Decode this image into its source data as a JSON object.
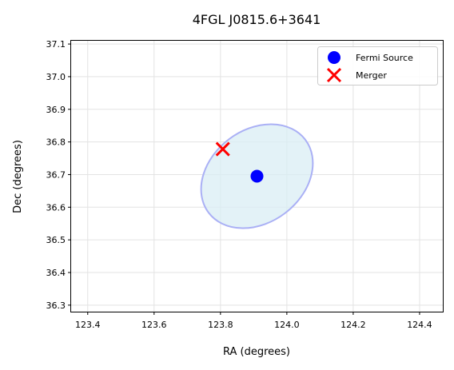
{
  "chart_data": {
    "type": "scatter",
    "title": "4FGL J0815.6+3641",
    "xlabel": "RA (degrees)",
    "ylabel": "Dec (degrees)",
    "xlim": [
      123.35,
      124.47
    ],
    "ylim": [
      36.28,
      37.11
    ],
    "x_ticks": [
      123.4,
      123.6,
      123.8,
      124.0,
      124.2,
      124.4
    ],
    "x_tick_labels": [
      "123.4",
      "123.6",
      "123.8",
      "124.0",
      "124.2",
      "124.4"
    ],
    "y_ticks": [
      36.3,
      36.4,
      36.5,
      36.6,
      36.7,
      36.8,
      36.9,
      37.0,
      37.1
    ],
    "y_tick_labels": [
      "36.3",
      "36.4",
      "36.5",
      "36.6",
      "36.7",
      "36.8",
      "36.9",
      "37.0",
      "37.1"
    ],
    "grid": true,
    "legend_position": "top-right",
    "series": [
      {
        "name": "Fermi Source",
        "marker": "circle",
        "color": "#0000ff",
        "points": [
          {
            "x": 123.91,
            "y": 36.695
          }
        ]
      },
      {
        "name": "Merger",
        "marker": "x",
        "color": "#ff0000",
        "points": [
          {
            "x": 123.807,
            "y": 36.778
          }
        ]
      }
    ],
    "error_ellipse": {
      "center": {
        "x": 123.91,
        "y": 36.695
      },
      "semi_major_deg": 0.184,
      "semi_minor_deg": 0.141,
      "angle_deg": 37,
      "fill_color": "#d9eef4",
      "edge_color": "#aab0f5"
    }
  }
}
